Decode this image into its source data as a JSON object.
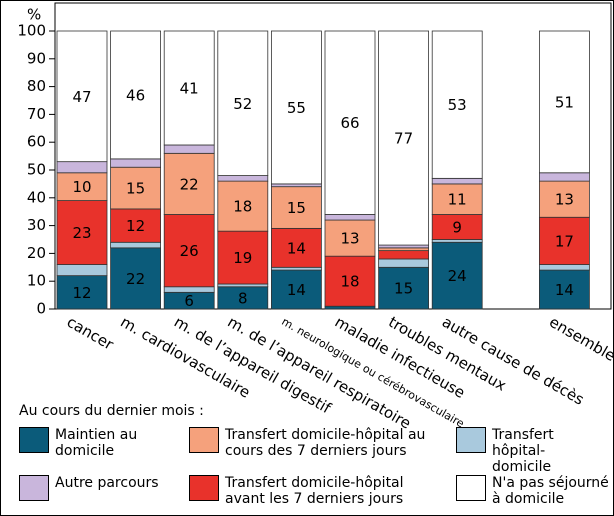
{
  "chart_data": {
    "type": "stacked_bar",
    "y_unit": "%",
    "legend_title": "Au cours du dernier mois :",
    "categories": [
      "cancer",
      "m. cardiovasculaire",
      "m. de l’appareil digestif",
      "m. de l’appareil respiratoire",
      "m. neurologique ou cérébrovasculaire",
      "maladie infectieuse",
      "troubles mentaux",
      "autre cause de décès",
      null,
      "ensemble"
    ],
    "series": [
      {
        "name": "Maintien au domicile",
        "color": "#0b5b7a",
        "values": [
          12,
          22,
          6,
          8,
          14,
          1,
          15,
          24,
          null,
          14
        ]
      },
      {
        "name": "Transfert hôpital-domicile",
        "color": "#a9c9dd",
        "values": [
          4,
          2,
          2,
          1,
          1,
          0,
          3,
          1,
          null,
          2
        ]
      },
      {
        "name": "Transfert domicile-hôpital avant les 7 derniers jours",
        "color": "#e8322b",
        "values": [
          23,
          12,
          26,
          19,
          14,
          18,
          3,
          9,
          null,
          17
        ]
      },
      {
        "name": "Transfert domicile-hôpital au cours des 7 derniers jours",
        "color": "#f5a17c",
        "values": [
          10,
          15,
          22,
          18,
          15,
          13,
          1,
          11,
          null,
          13
        ]
      },
      {
        "name": "Autre parcours",
        "color": "#c9b6dc",
        "values": [
          4,
          3,
          3,
          2,
          1,
          2,
          1,
          2,
          null,
          3
        ]
      },
      {
        "name": "N'a pas séjourné à domicile",
        "color": "#ffffff",
        "values": [
          47,
          46,
          41,
          52,
          55,
          66,
          77,
          53,
          null,
          51
        ]
      }
    ],
    "ylim": [
      0,
      100
    ],
    "yticks": [
      0,
      10,
      20,
      30,
      40,
      50,
      60,
      70,
      80,
      90,
      100
    ]
  }
}
